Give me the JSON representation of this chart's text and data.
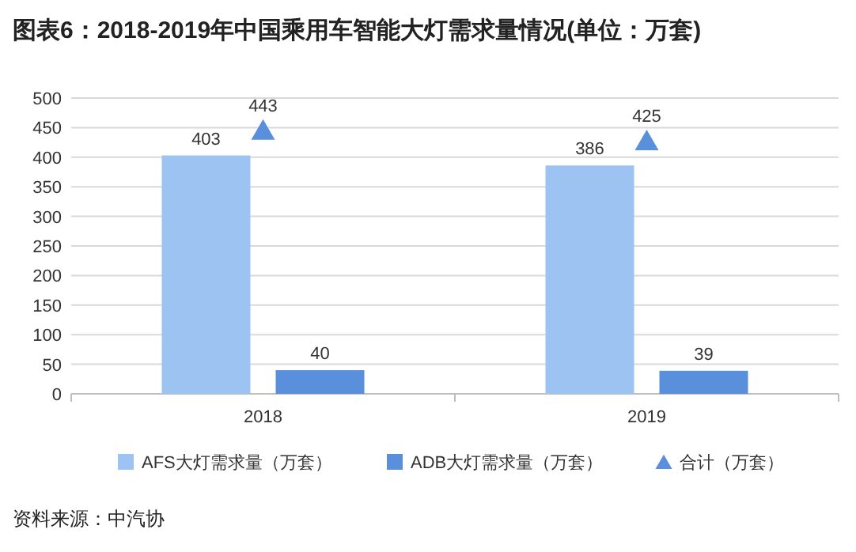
{
  "chart_data": {
    "type": "bar",
    "title": "图表6：2018-2019年中国乘用车智能大灯需求量情况(单位：万套)",
    "categories": [
      "2018",
      "2019"
    ],
    "series": [
      {
        "name": "AFS大灯需求量（万套）",
        "color": "#9dc3f3",
        "values": [
          403,
          386
        ]
      },
      {
        "name": "ADB大灯需求量（万套）",
        "color": "#5a8fdc",
        "values": [
          40,
          39
        ]
      },
      {
        "name": "合计（万套）",
        "type": "scatter",
        "color": "#5a8fdc",
        "values": [
          443,
          425
        ]
      }
    ],
    "marker": "triangle",
    "ylim": [
      0,
      500
    ],
    "yticks": [
      0,
      50,
      100,
      150,
      200,
      250,
      300,
      350,
      400,
      450,
      500
    ],
    "grid": "y",
    "legend": "bottom",
    "data_labels": true,
    "annotations": [
      "资料来源：中汽协"
    ]
  }
}
